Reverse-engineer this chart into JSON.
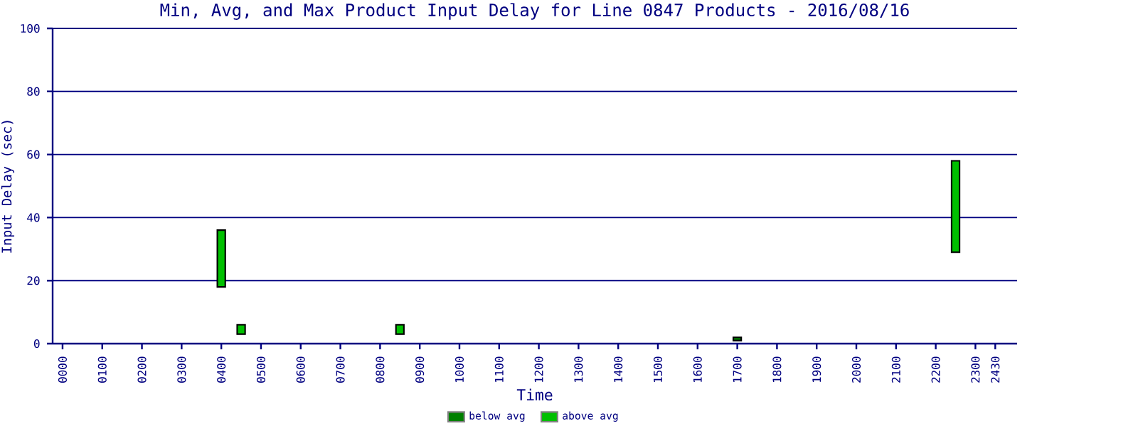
{
  "chart_data": {
    "type": "bar",
    "title": "Min, Avg, and Max Product Input Delay for Line 0847 Products - 2016/08/16",
    "xlabel": "Time",
    "ylabel": "Input Delay (sec)",
    "categories": [
      "0000",
      null,
      "0100",
      null,
      "0200",
      null,
      "0300",
      null,
      "0400",
      null,
      "0500",
      null,
      "0600",
      null,
      "0700",
      null,
      "0800",
      null,
      "0900",
      null,
      "1000",
      null,
      "1100",
      null,
      "1200",
      null,
      "1300",
      null,
      "1400",
      null,
      "1500",
      null,
      "1600",
      null,
      "1700",
      null,
      "1800",
      null,
      "1900",
      null,
      "2000",
      null,
      "2100",
      null,
      "2200",
      null,
      "2300",
      "2430"
    ],
    "stacked": true,
    "series": [
      {
        "name": "below avg",
        "color": "#008000",
        "base": [
          null,
          null,
          null,
          null,
          null,
          null,
          null,
          null,
          null,
          null,
          null,
          null,
          null,
          null,
          null,
          null,
          null,
          null,
          null,
          null,
          null,
          null,
          null,
          null,
          null,
          null,
          null,
          null,
          null,
          null,
          null,
          null,
          null,
          null,
          1,
          null,
          null,
          null,
          null,
          null,
          null,
          null,
          null,
          null,
          null,
          null,
          null,
          null
        ],
        "values": [
          null,
          null,
          null,
          null,
          null,
          null,
          null,
          null,
          null,
          null,
          null,
          null,
          null,
          null,
          null,
          null,
          null,
          null,
          null,
          null,
          null,
          null,
          null,
          null,
          null,
          null,
          null,
          null,
          null,
          null,
          null,
          null,
          null,
          null,
          1,
          null,
          null,
          null,
          null,
          null,
          null,
          null,
          null,
          null,
          null,
          null,
          null,
          null
        ]
      },
      {
        "name": "above avg",
        "color": "#00c000",
        "base": [
          null,
          null,
          null,
          null,
          null,
          null,
          null,
          null,
          18,
          3,
          null,
          null,
          null,
          null,
          null,
          null,
          null,
          3,
          null,
          null,
          null,
          null,
          null,
          null,
          null,
          null,
          null,
          null,
          null,
          null,
          null,
          null,
          null,
          null,
          null,
          null,
          null,
          null,
          null,
          null,
          null,
          null,
          null,
          null,
          null,
          29,
          null,
          null
        ],
        "values": [
          null,
          null,
          null,
          null,
          null,
          null,
          null,
          null,
          18,
          3,
          null,
          null,
          null,
          null,
          null,
          null,
          null,
          3,
          null,
          null,
          null,
          null,
          null,
          null,
          null,
          null,
          null,
          null,
          null,
          null,
          null,
          null,
          null,
          null,
          null,
          null,
          null,
          null,
          null,
          null,
          null,
          null,
          null,
          null,
          null,
          29,
          null,
          null
        ]
      }
    ],
    "ylim": [
      0,
      100
    ],
    "yticks": [
      0,
      20,
      40,
      60,
      80,
      100
    ],
    "grid": "y",
    "legend": "bottom"
  }
}
